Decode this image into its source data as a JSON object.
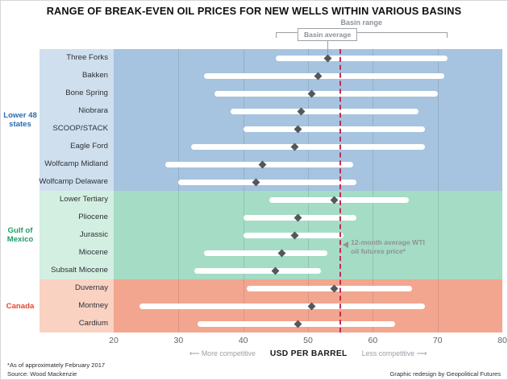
{
  "legend": {
    "range_label": "Basin range",
    "average_label": "Basin average"
  },
  "axis": {
    "unit_label": "USD PER BARREL",
    "more_competitive": "More competitive",
    "less_competitive": "Less competitive",
    "left_arrow": "⟵",
    "right_arrow": "⟶"
  },
  "annotation": {
    "line1": "12-month average WTI",
    "line2": "oil futures price*"
  },
  "footnotes": {
    "asof": "*As of approximately February 2017",
    "source": "Source: Wood Mackenzie",
    "credit": "Graphic redesign by Geopolitical Futures"
  },
  "colors": {
    "reference_line": "#c22a55",
    "bar": "#ffffff",
    "diamond": "#54585d"
  },
  "chart_data": {
    "type": "range-dot",
    "title": "RANGE OF BREAK-EVEN OIL PRICES FOR NEW WELLS WITHIN VARIOUS BASINS",
    "xlabel": "USD PER BARREL",
    "xlim": [
      20,
      80
    ],
    "xticks": [
      20,
      30,
      40,
      50,
      60,
      70,
      80
    ],
    "reference_line": {
      "value": 55,
      "label": "12-month average WTI oil futures price*"
    },
    "groups": [
      {
        "name": "Lower 48 states",
        "color": "#2a6cb0",
        "band": "#a6c3df",
        "tint": "#cfdfee",
        "rows": [
          {
            "basin": "Three Forks",
            "min": 45,
            "max": 71.5,
            "avg": 53
          },
          {
            "basin": "Bakken",
            "min": 34,
            "max": 71,
            "avg": 51.5
          },
          {
            "basin": "Bone Spring",
            "min": 35.5,
            "max": 70,
            "avg": 50.5
          },
          {
            "basin": "Niobrara",
            "min": 38,
            "max": 67,
            "avg": 49
          },
          {
            "basin": "SCOOP/STACK",
            "min": 40,
            "max": 68,
            "avg": 48.5
          },
          {
            "basin": "Eagle Ford",
            "min": 32,
            "max": 68,
            "avg": 48
          },
          {
            "basin": "Wolfcamp Midland",
            "min": 28,
            "max": 57,
            "avg": 43
          },
          {
            "basin": "Wolfcamp Delaware",
            "min": 30,
            "max": 57.5,
            "avg": 42
          }
        ]
      },
      {
        "name": "Gulf of Mexico",
        "color": "#1e9e66",
        "band": "#a4dcc5",
        "tint": "#d3efe2",
        "rows": [
          {
            "basin": "Lower Tertiary",
            "min": 44,
            "max": 65.5,
            "avg": 54
          },
          {
            "basin": "Pliocene",
            "min": 40,
            "max": 57.5,
            "avg": 48.5
          },
          {
            "basin": "Jurassic",
            "min": 40,
            "max": 55.5,
            "avg": 48
          },
          {
            "basin": "Miocene",
            "min": 34,
            "max": 53,
            "avg": 46
          },
          {
            "basin": "Subsalt Miocene",
            "min": 32.5,
            "max": 52,
            "avg": 45
          }
        ]
      },
      {
        "name": "Canada",
        "color": "#e2492f",
        "band": "#f3a68f",
        "tint": "#f9d2c2",
        "rows": [
          {
            "basin": "Duvernay",
            "min": 40.5,
            "max": 66,
            "avg": 54
          },
          {
            "basin": "Montney",
            "min": 24,
            "max": 68,
            "avg": 50.5
          },
          {
            "basin": "Cardium",
            "min": 33,
            "max": 63.5,
            "avg": 48.5
          }
        ]
      }
    ]
  }
}
